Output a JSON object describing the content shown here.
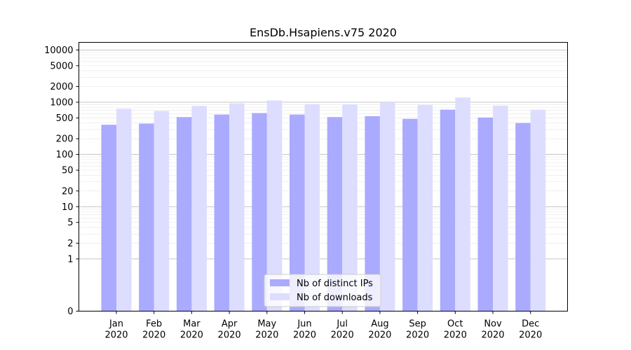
{
  "chart_data": {
    "type": "bar",
    "title": "EnsDb.Hsapiens.v75 2020",
    "xlabel": "",
    "ylabel": "",
    "yscale": "symlog",
    "ylim": [
      0,
      14000
    ],
    "yticks": [
      0,
      1,
      2,
      5,
      10,
      20,
      50,
      100,
      200,
      500,
      1000,
      2000,
      5000,
      10000
    ],
    "grid": "horizontal",
    "legend_position": "bottom-center",
    "categories": [
      "Jan\n2020",
      "Feb\n2020",
      "Mar\n2020",
      "Apr\n2020",
      "May\n2020",
      "Jun\n2020",
      "Jul\n2020",
      "Aug\n2020",
      "Sep\n2020",
      "Oct\n2020",
      "Nov\n2020",
      "Dec\n2020"
    ],
    "series": [
      {
        "name": "Nb of distinct IPs",
        "color": "#aaaaff",
        "values": [
          370,
          390,
          520,
          580,
          620,
          580,
          520,
          540,
          480,
          720,
          510,
          400
        ]
      },
      {
        "name": "Nb of downloads",
        "color": "#ddddff",
        "values": [
          750,
          680,
          850,
          950,
          1080,
          920,
          910,
          1000,
          890,
          1230,
          860,
          720
        ]
      }
    ]
  }
}
